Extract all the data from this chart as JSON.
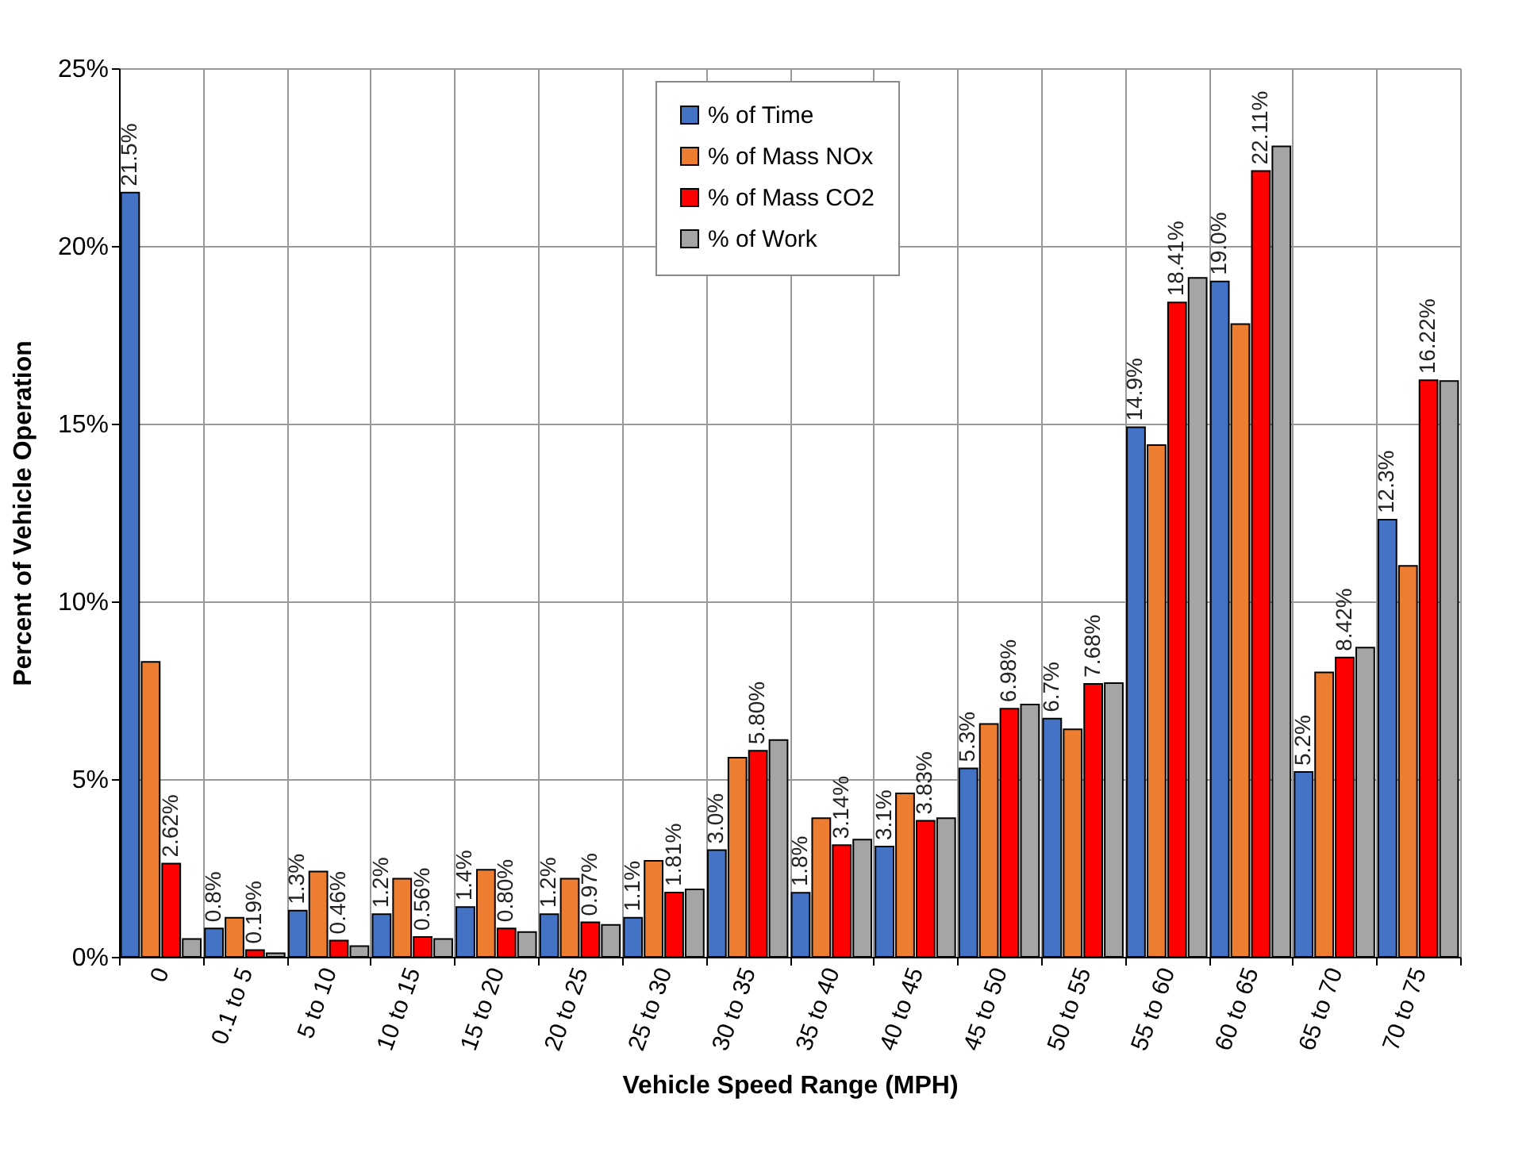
{
  "chart_data": {
    "type": "bar",
    "xlabel": "Vehicle  Speed Range (MPH)",
    "ylabel": "Percent of Vehicle Operation",
    "categories": [
      "0",
      "0.1 to 5",
      "5 to 10",
      "10 to 15",
      "15 to 20",
      "20 to 25",
      "25 to 30",
      "30 to 35",
      "35 to 40",
      "40 to 45",
      "45 to 50",
      "50 to 55",
      "55 to 60",
      "60 to 65",
      "65 to 70",
      "70 to 75"
    ],
    "series": [
      {
        "name": "% of Time",
        "color": "#4472c4",
        "values": [
          21.5,
          0.8,
          1.3,
          1.2,
          1.4,
          1.2,
          1.1,
          3.0,
          1.8,
          3.1,
          5.3,
          6.7,
          14.9,
          19.0,
          5.2,
          12.3
        ],
        "value_labels": [
          "21.5%",
          "0.8%",
          "1.3%",
          "1.2%",
          "1.4%",
          "1.2%",
          "1.1%",
          "3.0%",
          "1.8%",
          "3.1%",
          "5.3%",
          "6.7%",
          "14.9%",
          "19.0%",
          "5.2%",
          "12.3%"
        ]
      },
      {
        "name": "% of Mass NOx",
        "color": "#ed7d31",
        "values": [
          8.3,
          1.1,
          2.4,
          2.2,
          2.45,
          2.2,
          2.7,
          5.6,
          3.9,
          4.6,
          6.55,
          6.4,
          14.4,
          17.8,
          8.0,
          11.0
        ]
      },
      {
        "name": "% of Mass CO2",
        "color": "#ff0000",
        "values": [
          2.62,
          0.19,
          0.46,
          0.56,
          0.8,
          0.97,
          1.81,
          5.8,
          3.14,
          3.83,
          6.98,
          7.68,
          18.41,
          22.11,
          8.42,
          16.22
        ],
        "value_labels": [
          "2.62%",
          "0.19%",
          "0.46%",
          "0.56%",
          "0.80%",
          "0.97%",
          "1.81%",
          "5.80%",
          "3.14%",
          "3.83%",
          "6.98%",
          "7.68%",
          "18.41%",
          "22.11%",
          "8.42%",
          "16.22%"
        ]
      },
      {
        "name": "% of Work",
        "color": "#a5a5a5",
        "values": [
          0.5,
          0.1,
          0.3,
          0.5,
          0.7,
          0.9,
          1.9,
          6.1,
          3.3,
          3.9,
          7.1,
          7.7,
          19.1,
          22.8,
          8.7,
          16.2
        ]
      }
    ],
    "ylim": [
      0,
      25
    ],
    "yticks": [
      {
        "value": 0,
        "label": "0%"
      },
      {
        "value": 5,
        "label": "5%"
      },
      {
        "value": 10,
        "label": "10%"
      },
      {
        "value": 15,
        "label": "15%"
      },
      {
        "value": 20,
        "label": "20%"
      },
      {
        "value": 25,
        "label": "25%"
      }
    ],
    "grid": true,
    "legend": "top"
  }
}
